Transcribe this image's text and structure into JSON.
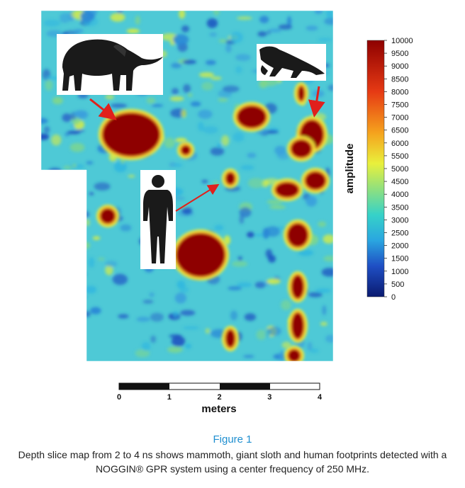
{
  "chart_data": {
    "type": "heatmap",
    "title": "",
    "colorbar": {
      "label": "amplitude",
      "ticks": [
        10000,
        9500,
        9000,
        8500,
        8000,
        7500,
        7000,
        6500,
        6000,
        5500,
        5000,
        4500,
        4000,
        3500,
        3000,
        2500,
        2000,
        1500,
        1000,
        500,
        0
      ],
      "range": [
        0,
        10000
      ],
      "colormap": [
        "#0a1a70",
        "#1f4fc4",
        "#2aa6e0",
        "#36d2c8",
        "#8fe07e",
        "#e9f03c",
        "#f5a21d",
        "#e63a14",
        "#8e0000"
      ]
    },
    "scale_bar": {
      "label": "meters",
      "ticks": [
        "0",
        "1",
        "2",
        "3",
        "4"
      ],
      "range": [
        0,
        4
      ]
    },
    "annotations": [
      {
        "name": "mammoth",
        "icon": "mammoth-silhouette"
      },
      {
        "name": "giant sloth",
        "icon": "sloth-silhouette"
      },
      {
        "name": "human",
        "icon": "human-silhouette"
      }
    ]
  },
  "caption": {
    "title": "Figure 1",
    "text": "Depth slice map from 2 to 4 ns shows mammoth, giant sloth and human footprints detected with a NOGGIN® GPR system using a center frequency of 250 MHz."
  }
}
